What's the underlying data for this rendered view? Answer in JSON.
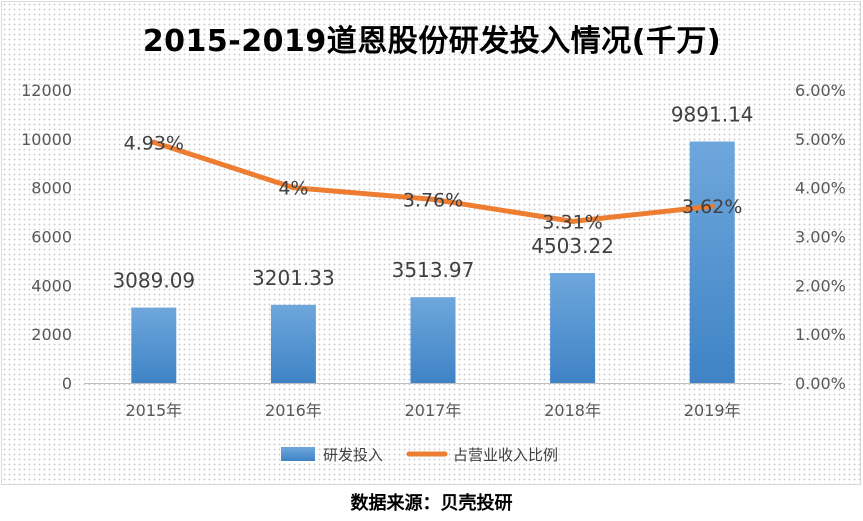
{
  "title": "2015-2019道恩股份研发投入情况(千万)",
  "source_note": "数据来源：贝壳投研",
  "chart_data": {
    "type": "bar",
    "categories": [
      "2015年",
      "2016年",
      "2017年",
      "2018年",
      "2019年"
    ],
    "series": [
      {
        "name": "研发投入",
        "type": "bar",
        "axis": "left",
        "values": [
          3089.09,
          3201.33,
          3513.97,
          4503.22,
          9891.14
        ],
        "labels": [
          "3089.09",
          "3201.33",
          "3513.97",
          "4503.22",
          "9891.14"
        ],
        "color": "#5b9bd5"
      },
      {
        "name": "占营业收入比例",
        "type": "line",
        "axis": "right",
        "values": [
          4.93,
          4.0,
          3.76,
          3.31,
          3.62
        ],
        "labels": [
          "4.93%",
          "4%",
          "3.76%",
          "3.31%",
          "3.62%"
        ],
        "color": "#ed7d31"
      }
    ],
    "y_left": {
      "ylim": [
        0,
        12000
      ],
      "ticks": [
        "0",
        "2000",
        "4000",
        "6000",
        "8000",
        "10000",
        "12000"
      ]
    },
    "y_right": {
      "ylim": [
        0,
        6
      ],
      "ticks": [
        "0.00%",
        "1.00%",
        "2.00%",
        "3.00%",
        "4.00%",
        "5.00%",
        "6.00%"
      ]
    },
    "grid": false,
    "legend_position": "bottom"
  }
}
